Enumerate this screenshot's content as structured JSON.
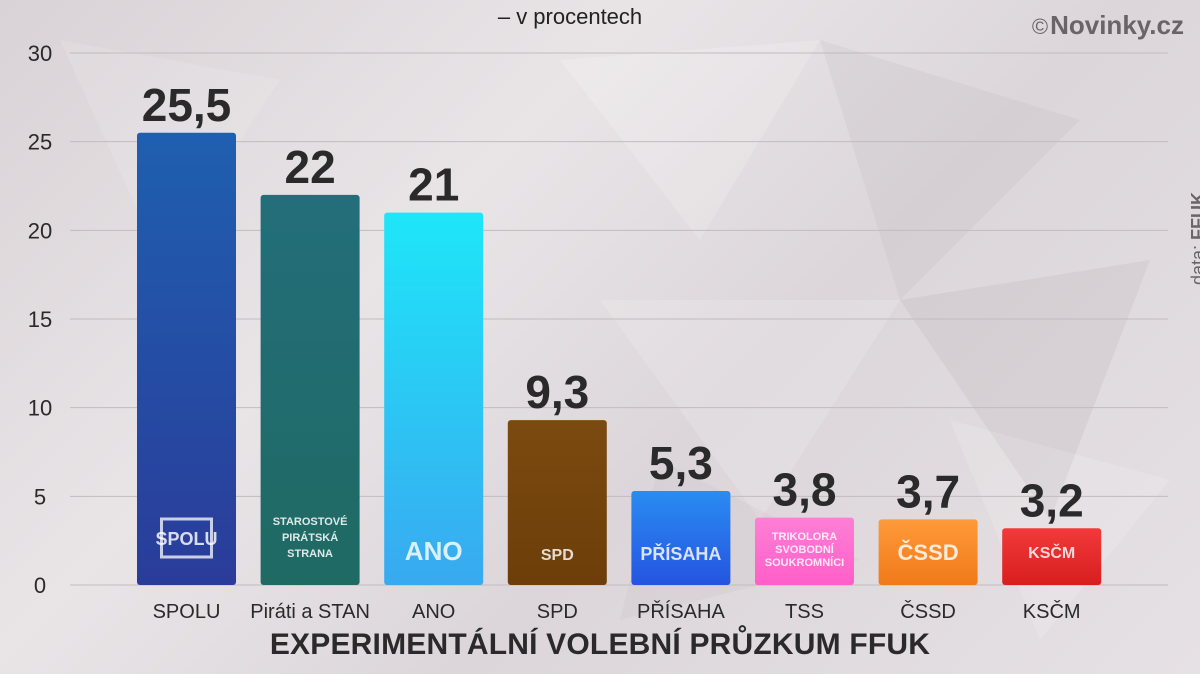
{
  "header": {
    "subtitle": "– v procentech",
    "copyright_symbol": "©",
    "copyright_brand": "Novinky.cz"
  },
  "source": {
    "prefix": "data:",
    "name": "FFUK"
  },
  "footer": {
    "title": "EXPERIMENTÁLNÍ VOLEBNÍ PRŮZKUM FFUK"
  },
  "chart_data": {
    "type": "bar",
    "title": "",
    "xlabel": "",
    "ylabel": "",
    "ylim": [
      0,
      30
    ],
    "yticks": [
      0,
      5,
      10,
      15,
      20,
      25,
      30
    ],
    "grid": true,
    "categories": [
      "SPOLU",
      "Piráti a STAN",
      "ANO",
      "SPD",
      "PŘÍSAHA",
      "TSS",
      "ČSSD",
      "KSČM"
    ],
    "values": [
      25.5,
      22,
      21,
      9.3,
      5.3,
      3.8,
      3.7,
      3.2
    ],
    "value_labels": [
      "25,5",
      "22",
      "21",
      "9,3",
      "5,3",
      "3,8",
      "3,7",
      "3,2"
    ],
    "colors": [
      [
        "#1f5fb0",
        "#2a3c9a"
      ],
      [
        "#236e7a",
        "#1f6a63"
      ],
      [
        "#1ee6f8",
        "#39a9f0"
      ],
      [
        "#7a4a10",
        "#6e3e0a"
      ],
      [
        "#2a8cf2",
        "#2554e0"
      ],
      [
        "#ff7fd6",
        "#ff5fc8"
      ],
      [
        "#ff9a3a",
        "#f07a1a"
      ],
      [
        "#f23a3a",
        "#d81e1e"
      ]
    ],
    "logos": [
      {
        "icon": "spolu-logo",
        "lines": [
          "SPOLU"
        ]
      },
      {
        "icon": "pirati-stan-logo",
        "lines": [
          "STAROSTOVÉ",
          "PIRÁTSKÁ",
          "STRANA"
        ]
      },
      {
        "icon": "ano-logo",
        "lines": [
          "ANO"
        ]
      },
      {
        "icon": "spd-logo",
        "lines": [
          "SPD"
        ]
      },
      {
        "icon": "prisaha-logo",
        "lines": [
          "PŘÍSAHA"
        ]
      },
      {
        "icon": "tss-logo",
        "lines": [
          "TRIKOLORA",
          "SVOBODNÍ",
          "SOUKROMNÍCI"
        ]
      },
      {
        "icon": "cssd-logo",
        "lines": [
          "ČSSD"
        ]
      },
      {
        "icon": "kscm-logo",
        "lines": [
          "KSČM"
        ]
      }
    ]
  }
}
